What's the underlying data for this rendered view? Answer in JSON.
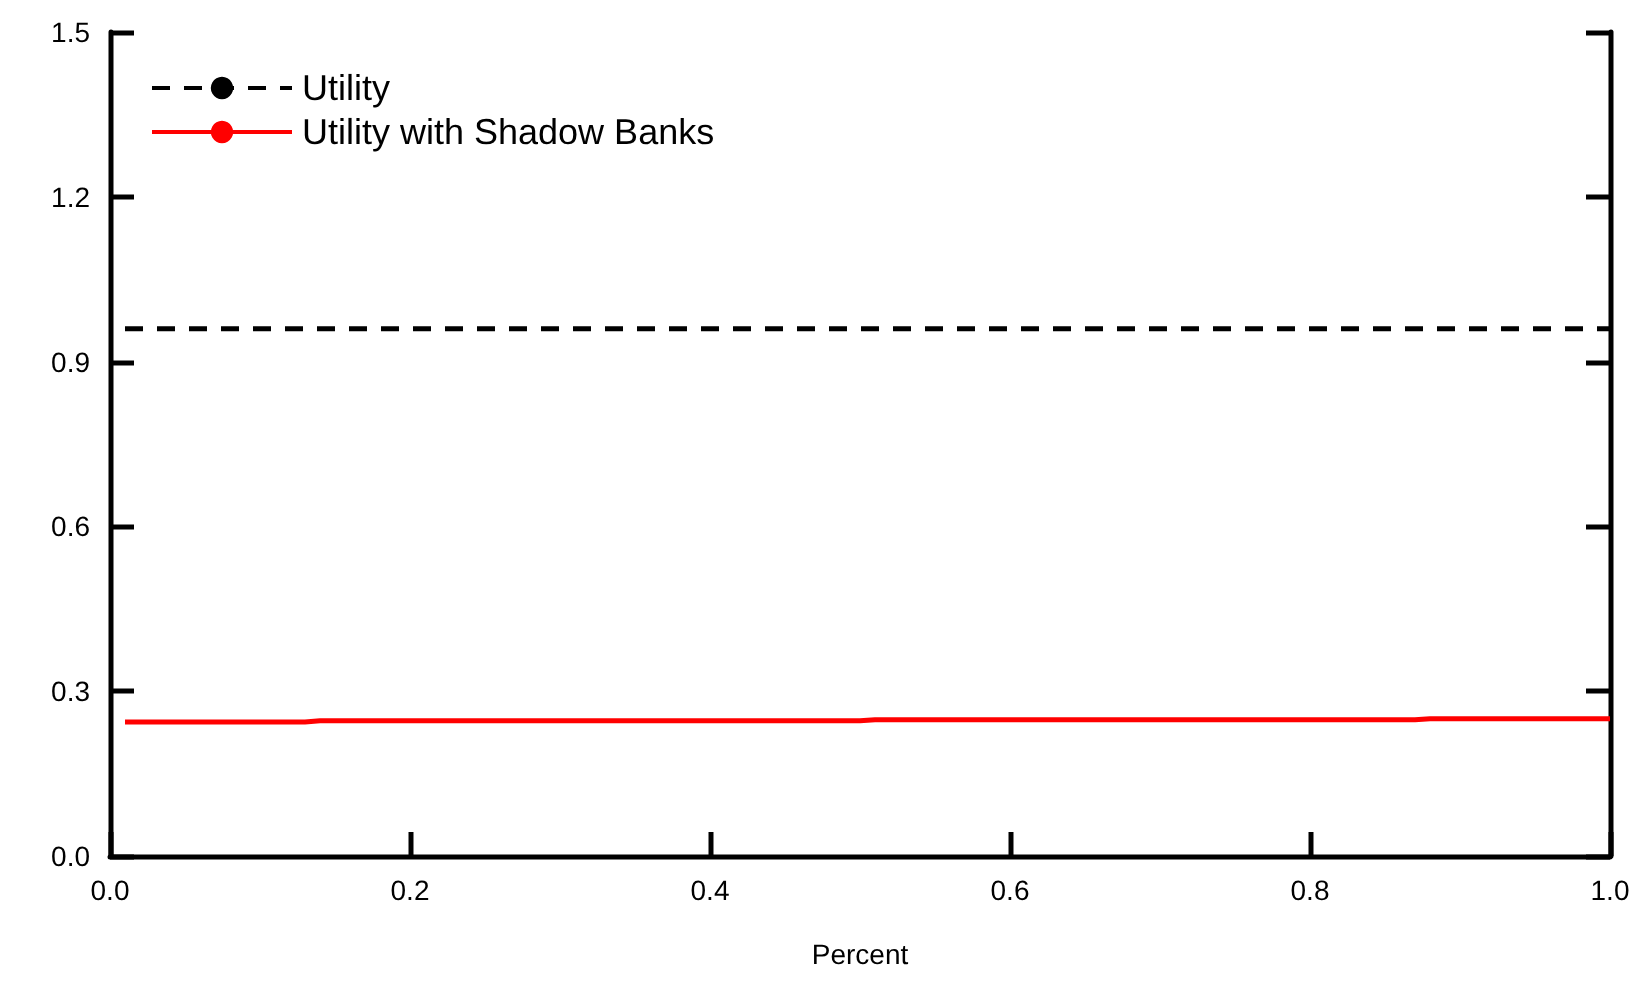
{
  "chart_data": {
    "type": "line",
    "xlabel": "Percent",
    "xlim": [
      0,
      1
    ],
    "xticks": [
      {
        "value": 0,
        "label": "0.0"
      },
      0.2,
      0.4,
      0.6,
      0.8,
      {
        "value": 1,
        "label": "1.0"
      }
    ],
    "ylim": [
      0,
      1.5
    ],
    "yticks": [
      {
        "value": 0,
        "label": "0.0"
      },
      0.3,
      0.6,
      0.9,
      1.2,
      1.5
    ],
    "grid": false,
    "legend": "top left",
    "marker": "none",
    "series": [
      {
        "name": "Utility",
        "color": "#000000",
        "line_style": "dashed",
        "x": [
          0.01,
          1.0
        ],
        "values": [
          0.96,
          0.96
        ]
      },
      {
        "name": "Utility with Shadow Banks",
        "color": "#ff0000",
        "line_style": "solid",
        "x": [
          0.01,
          0.13,
          0.14,
          0.5,
          0.51,
          0.87,
          0.88,
          1.0
        ],
        "values": [
          0.244,
          0.244,
          0.246,
          0.246,
          0.248,
          0.248,
          0.25,
          0.25
        ]
      }
    ]
  }
}
